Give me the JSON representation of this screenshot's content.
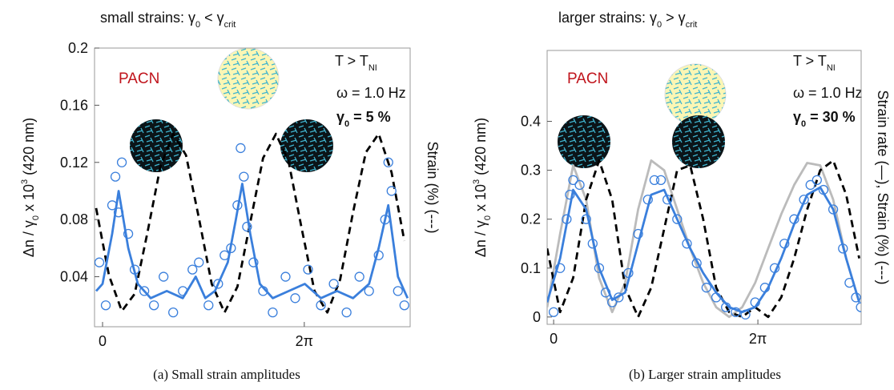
{
  "chart_data": [
    {
      "type": "line",
      "title": [
        "small strains: γ",
        "0",
        " < γ",
        "crit"
      ],
      "ylabel": [
        "Δn / γ",
        "0",
        " x 10",
        "3",
        " (420 nm)"
      ],
      "y2label": "Strain (%) (---)",
      "caption": "(a) Small strain amplitudes",
      "annotations": {
        "sample": "PACN",
        "temperature": [
          "T > T",
          "NI"
        ],
        "frequency": "ω = 1.0 Hz",
        "amplitude": [
          "γ",
          "0",
          " = 5 %"
        ]
      },
      "xlim": [
        -0.25,
        9.58
      ],
      "xticks": [
        0,
        {
          "value": 6.283,
          "label": "2π"
        }
      ],
      "ylim": [
        0.005,
        0.2
      ],
      "yticks": [
        0.04,
        0.08,
        0.12,
        0.16,
        0.2
      ],
      "series": [
        {
          "color": "#000000",
          "dash": true,
          "x": [
            -0.2,
            0.2,
            0.6,
            1.0,
            1.4,
            1.8,
            2.2,
            2.6,
            3.0,
            3.4,
            3.8,
            4.2,
            4.6,
            5.0,
            5.4,
            5.8,
            6.2,
            6.6,
            7.0,
            7.4,
            7.8,
            8.2,
            8.6,
            9.0,
            9.4
          ],
          "values": [
            0.088,
            0.041,
            0.016,
            0.028,
            0.071,
            0.117,
            0.14,
            0.125,
            0.081,
            0.035,
            0.015,
            0.033,
            0.078,
            0.123,
            0.14,
            0.12,
            0.074,
            0.03,
            0.015,
            0.038,
            0.085,
            0.127,
            0.14,
            0.113,
            0.065
          ]
        },
        {
          "color": "#3a7fdc",
          "marker": "circle",
          "x": [
            -0.1,
            0.1,
            0.3,
            0.4,
            0.5,
            0.6,
            0.8,
            1.0,
            1.3,
            1.6,
            1.9,
            2.2,
            2.5,
            2.8,
            3.0,
            3.3,
            3.6,
            3.8,
            4.0,
            4.2,
            4.3,
            4.4,
            4.5,
            4.7,
            5.0,
            5.3,
            5.7,
            6.0,
            6.4,
            6.8,
            7.2,
            7.6,
            8.0,
            8.3,
            8.6,
            8.8,
            8.9,
            9.0,
            9.2,
            9.4
          ],
          "values": [
            0.05,
            0.02,
            0.09,
            0.11,
            0.085,
            0.12,
            0.07,
            0.045,
            0.03,
            0.02,
            0.04,
            0.015,
            0.03,
            0.045,
            0.05,
            0.02,
            0.035,
            0.055,
            0.06,
            0.09,
            0.13,
            0.11,
            0.075,
            0.05,
            0.03,
            0.015,
            0.04,
            0.025,
            0.045,
            0.02,
            0.035,
            0.015,
            0.04,
            0.03,
            0.055,
            0.08,
            0.12,
            0.1,
            0.03,
            0.02
          ]
        },
        {
          "color": "#3a7fdc",
          "x": [
            -0.2,
            0,
            0.3,
            0.5,
            0.8,
            1.1,
            1.5,
            2.0,
            2.5,
            2.9,
            3.2,
            3.5,
            3.9,
            4.15,
            4.35,
            4.6,
            4.9,
            5.3,
            5.8,
            6.3,
            6.8,
            7.3,
            7.8,
            8.3,
            8.6,
            8.9,
            9.2,
            9.5
          ],
          "values": [
            0.03,
            0.035,
            0.07,
            0.1,
            0.06,
            0.035,
            0.025,
            0.03,
            0.025,
            0.04,
            0.025,
            0.03,
            0.05,
            0.08,
            0.105,
            0.07,
            0.035,
            0.025,
            0.03,
            0.035,
            0.025,
            0.03,
            0.025,
            0.035,
            0.06,
            0.09,
            0.04,
            0.025
          ]
        }
      ]
    },
    {
      "type": "line",
      "title": [
        "larger strains: γ",
        "0",
        " > γ",
        "crit"
      ],
      "ylabel": [
        "Δn / γ",
        "0",
        " x 10",
        "3",
        " (420 nm)"
      ],
      "y2label": "Strain rate (—), Strain (%) (---)",
      "caption": "(b) Larger strain amplitudes",
      "annotations": {
        "sample": "PACN",
        "temperature": [
          "T > T",
          "NI"
        ],
        "frequency": "ω = 1.0 Hz",
        "amplitude": [
          "γ",
          "0",
          " = 30 %"
        ]
      },
      "xlim": [
        -0.2,
        9.46
      ],
      "xticks": [
        0,
        {
          "value": 6.283,
          "label": "2π"
        }
      ],
      "ylim": [
        -0.015,
        0.545
      ],
      "yticks": [
        0,
        0.1,
        0.2,
        0.3,
        0.4
      ],
      "series": [
        {
          "color": "#bbbbbb",
          "x": [
            -0.2,
            0.2,
            0.6,
            1.0,
            1.4,
            1.8,
            2.2,
            2.6,
            3.0,
            3.4,
            3.8,
            4.2,
            4.6,
            5.0,
            5.4,
            5.8,
            6.2,
            6.6,
            7.0,
            7.4,
            7.8,
            8.2,
            8.6,
            9.0,
            9.4
          ],
          "values": [
            0.02,
            0.17,
            0.31,
            0.24,
            0.08,
            0.01,
            0.07,
            0.22,
            0.32,
            0.3,
            0.22,
            0.14,
            0.07,
            0.02,
            0.0,
            0.02,
            0.07,
            0.14,
            0.21,
            0.27,
            0.315,
            0.31,
            0.24,
            0.12,
            0.03
          ]
        },
        {
          "color": "#000000",
          "dash": true,
          "x": [
            -0.2,
            0.2,
            0.6,
            1.0,
            1.4,
            1.8,
            2.2,
            2.6,
            3.0,
            3.4,
            3.8,
            4.2,
            4.6,
            5.0,
            5.4,
            5.8,
            6.2,
            6.6,
            7.0,
            7.4,
            7.8,
            8.2,
            8.6,
            9.0,
            9.4
          ],
          "values": [
            0.14,
            0.01,
            0.08,
            0.24,
            0.32,
            0.24,
            0.06,
            0.0,
            0.06,
            0.18,
            0.3,
            0.31,
            0.2,
            0.06,
            0.01,
            0.0,
            0.02,
            0.0,
            0.04,
            0.12,
            0.22,
            0.3,
            0.32,
            0.25,
            0.12
          ]
        },
        {
          "color": "#3a7fdc",
          "marker": "circle",
          "x": [
            0,
            0.2,
            0.4,
            0.5,
            0.6,
            0.8,
            1.0,
            1.2,
            1.4,
            1.6,
            1.8,
            2.0,
            2.3,
            2.6,
            2.9,
            3.1,
            3.3,
            3.5,
            3.8,
            4.1,
            4.4,
            4.7,
            5.0,
            5.3,
            5.6,
            5.9,
            6.2,
            6.5,
            6.8,
            7.1,
            7.4,
            7.7,
            7.9,
            8.1,
            8.3,
            8.6,
            8.9,
            9.1,
            9.3,
            9.45
          ],
          "values": [
            0.01,
            0.1,
            0.2,
            0.25,
            0.28,
            0.27,
            0.2,
            0.15,
            0.1,
            0.05,
            0.03,
            0.04,
            0.09,
            0.17,
            0.24,
            0.28,
            0.28,
            0.24,
            0.2,
            0.15,
            0.11,
            0.06,
            0.04,
            0.02,
            0.01,
            0.005,
            0.03,
            0.06,
            0.1,
            0.15,
            0.2,
            0.24,
            0.27,
            0.28,
            0.26,
            0.22,
            0.14,
            0.07,
            0.04,
            0.02
          ]
        },
        {
          "color": "#3a7fdc",
          "x": [
            -0.2,
            0.2,
            0.6,
            1.0,
            1.4,
            1.8,
            2.2,
            2.6,
            3.0,
            3.4,
            3.8,
            4.2,
            4.6,
            5.0,
            5.4,
            5.8,
            6.2,
            6.6,
            7.0,
            7.4,
            7.8,
            8.2,
            8.6,
            9.0,
            9.4
          ],
          "values": [
            0.03,
            0.12,
            0.26,
            0.22,
            0.1,
            0.035,
            0.05,
            0.15,
            0.25,
            0.26,
            0.2,
            0.14,
            0.09,
            0.05,
            0.02,
            0.01,
            0.02,
            0.06,
            0.12,
            0.19,
            0.25,
            0.265,
            0.22,
            0.12,
            0.03
          ]
        }
      ]
    }
  ]
}
